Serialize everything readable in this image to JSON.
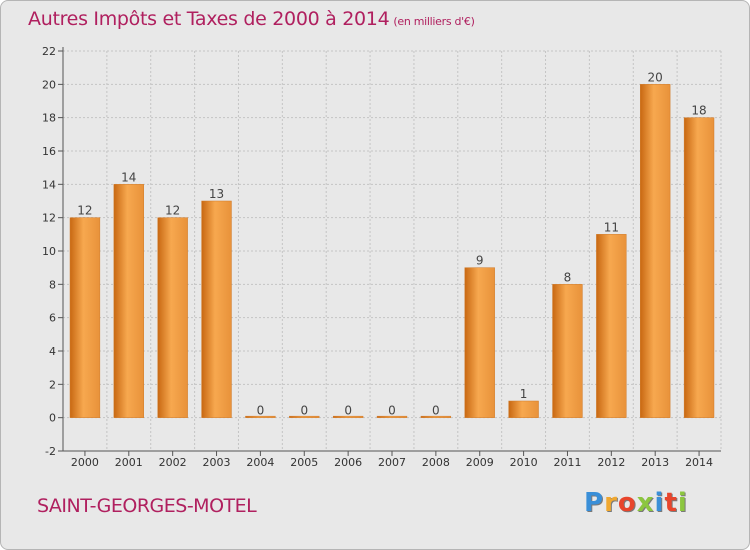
{
  "title": "Autres Impôts et Taxes de 2000 à 2014",
  "subtitle": "(en milliers d'€)",
  "commune": "SAINT-GEORGES-MOTEL",
  "logo": {
    "letters": [
      "P",
      "r",
      "o",
      "x",
      "i",
      "t",
      "i"
    ],
    "colors": [
      "#3a8fd8",
      "#f0a830",
      "#e8452c",
      "#8cc63f",
      "#3a8fd8",
      "#e8452c",
      "#8cc63f"
    ]
  },
  "colors": {
    "title": "#b0205f",
    "bar_light": "#f7a84f",
    "bar_dark": "#c86812",
    "background": "#e8e8e8"
  },
  "chart_data": {
    "type": "bar",
    "categories": [
      "2000",
      "2001",
      "2002",
      "2003",
      "2004",
      "2005",
      "2006",
      "2007",
      "2008",
      "2009",
      "2010",
      "2011",
      "2012",
      "2013",
      "2014"
    ],
    "values": [
      12,
      14,
      12,
      13,
      0,
      0,
      0,
      0,
      0,
      9,
      1,
      8,
      11,
      20,
      18
    ],
    "title": "Autres Impôts et Taxes de 2000 à 2014",
    "xlabel": "",
    "ylabel": "",
    "ylim": [
      -2,
      22
    ],
    "yticks": [
      -2,
      0,
      2,
      4,
      6,
      8,
      10,
      12,
      14,
      16,
      18,
      20,
      22
    ],
    "grid": true,
    "data_labels": true
  }
}
